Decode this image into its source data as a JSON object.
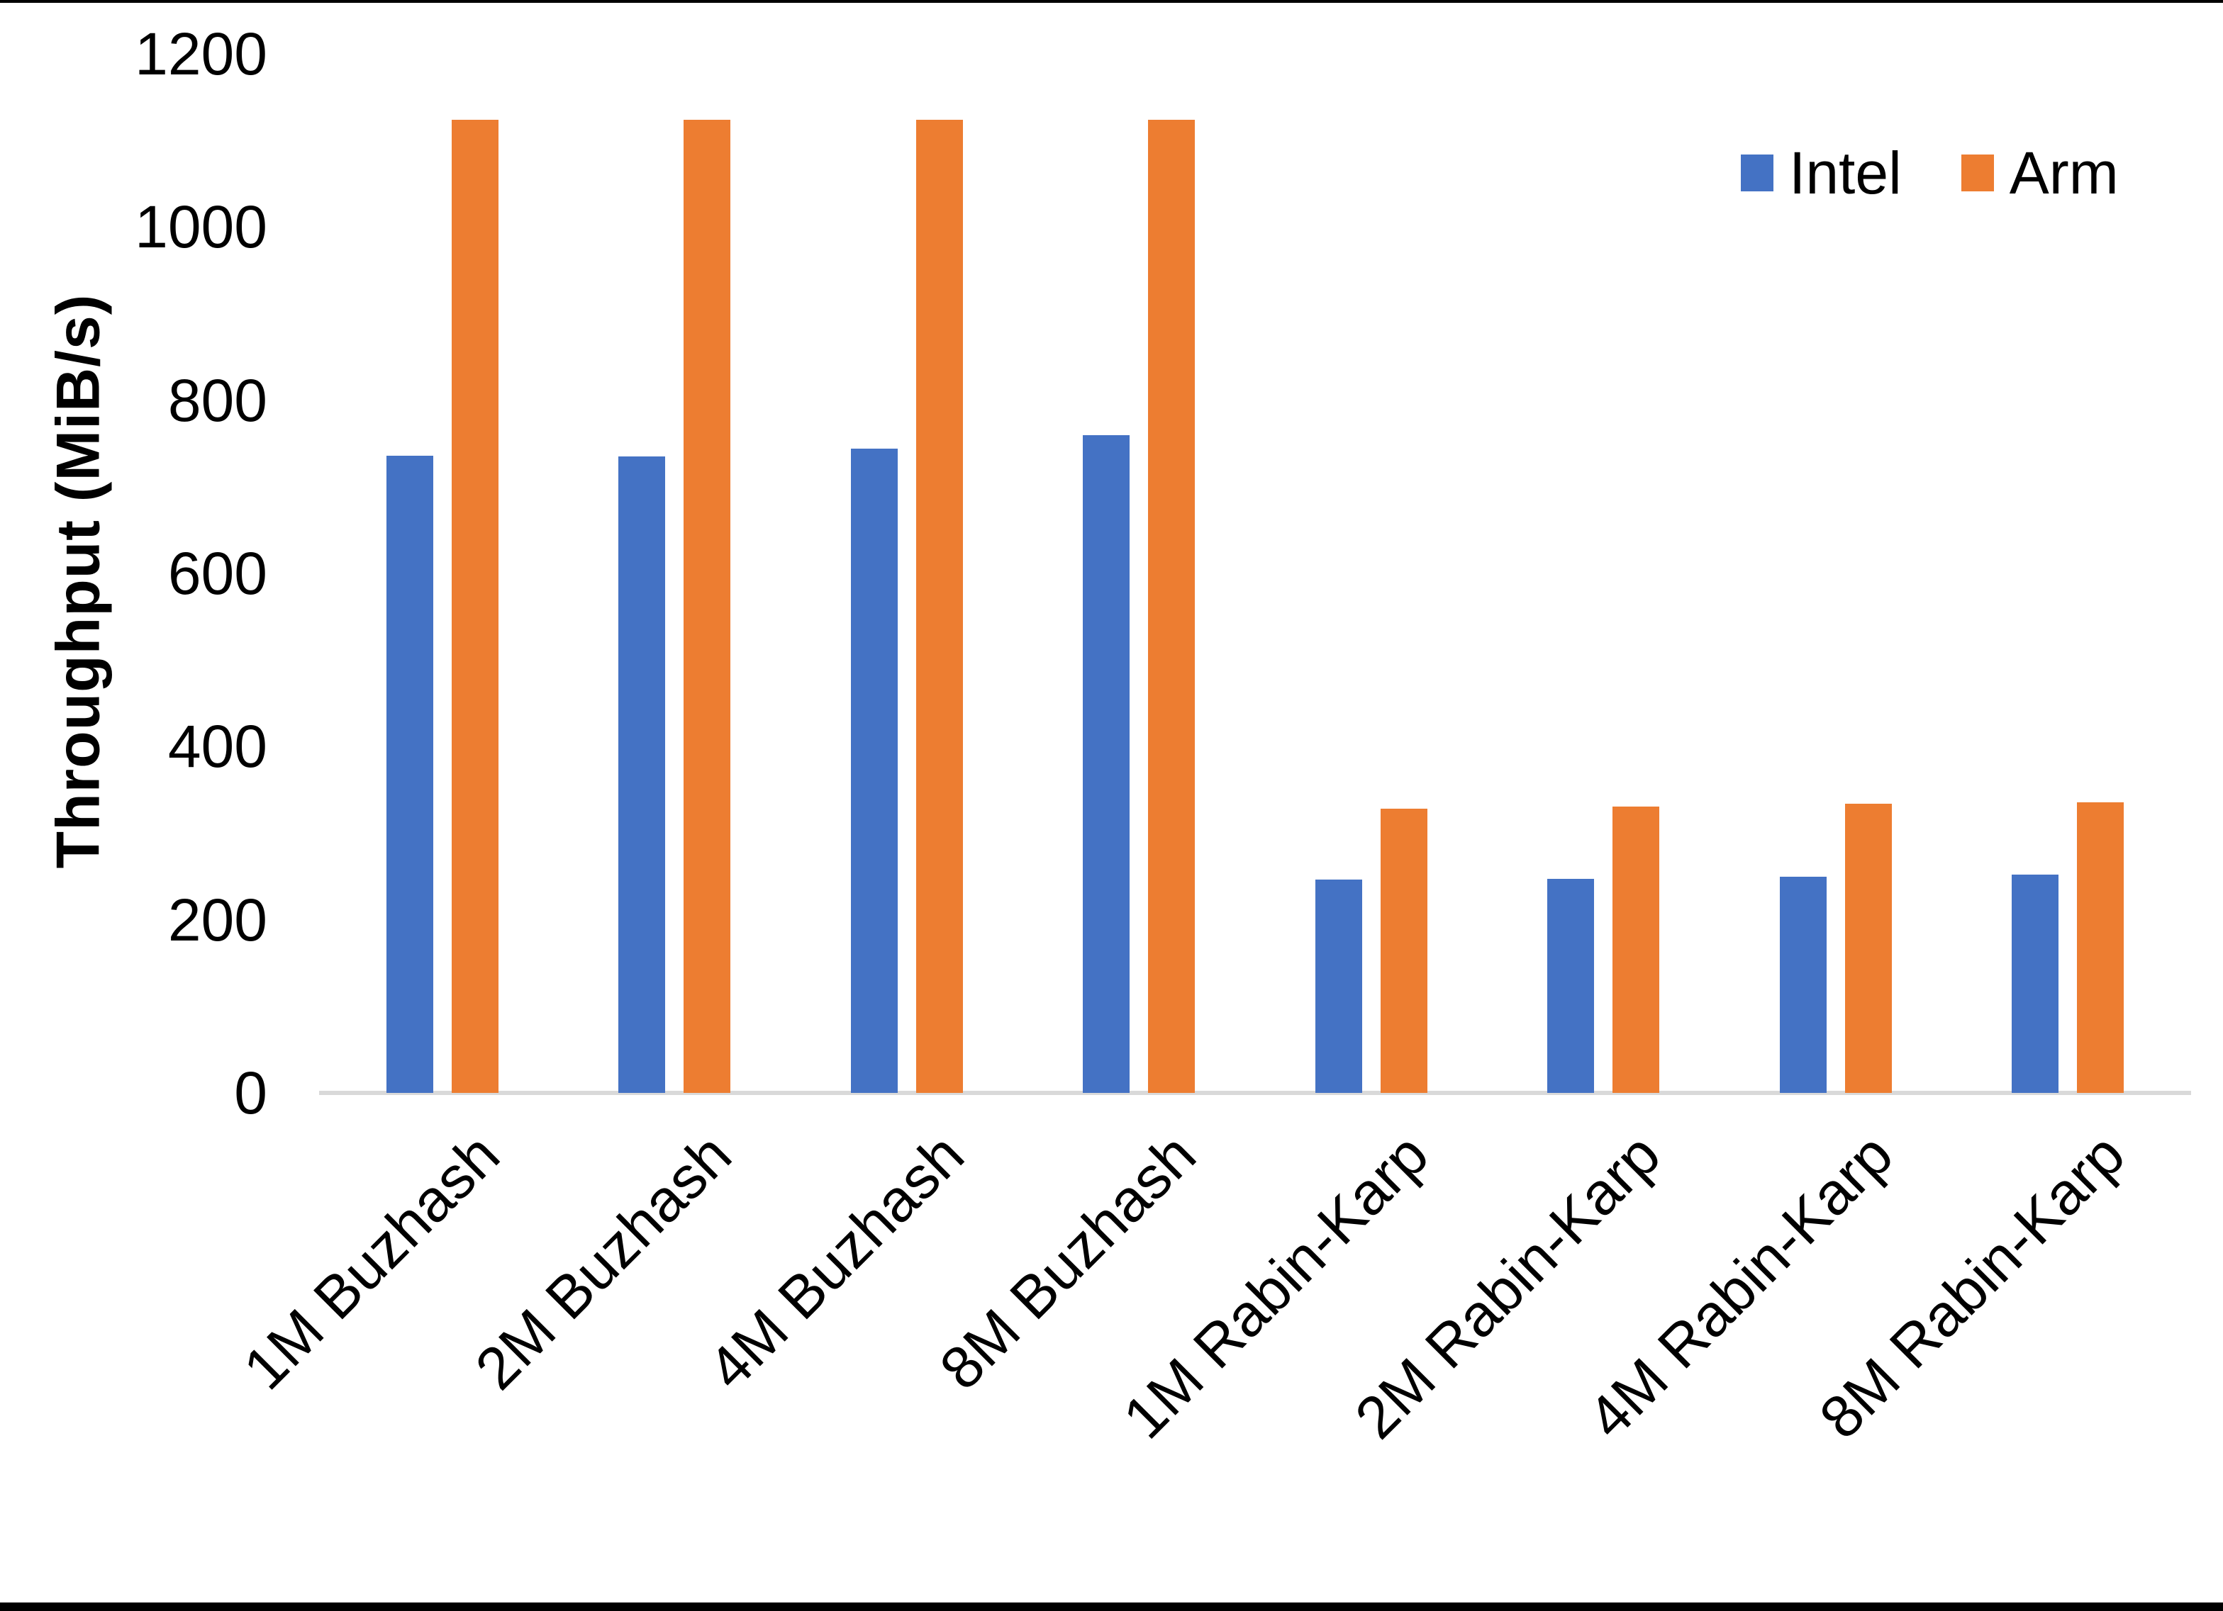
{
  "chart_data": {
    "type": "bar",
    "title": "",
    "xlabel": "",
    "ylabel": "Throughput (MiB/s)",
    "ylim": [
      0,
      1200
    ],
    "yticks": [
      0,
      200,
      400,
      600,
      800,
      1000,
      1200
    ],
    "grid": false,
    "legend_position": "top-right",
    "axis_line_color": "#d9d9d9",
    "categories": [
      "1M Buzhash",
      "2M Buzhash",
      "4M Buzhash",
      "8M Buzhash",
      "1M Rabin-Karp",
      "2M Rabin-Karp",
      "4M Rabin-Karp",
      "8M Rabin-Karp"
    ],
    "series": [
      {
        "name": "Intel",
        "color": "#4472C4",
        "values": [
          736,
          735,
          744,
          760,
          246,
          247,
          250,
          252
        ]
      },
      {
        "name": "Arm",
        "color": "#ED7D31",
        "values": [
          1124,
          1124,
          1124,
          1124,
          328,
          331,
          334,
          336
        ]
      }
    ]
  }
}
